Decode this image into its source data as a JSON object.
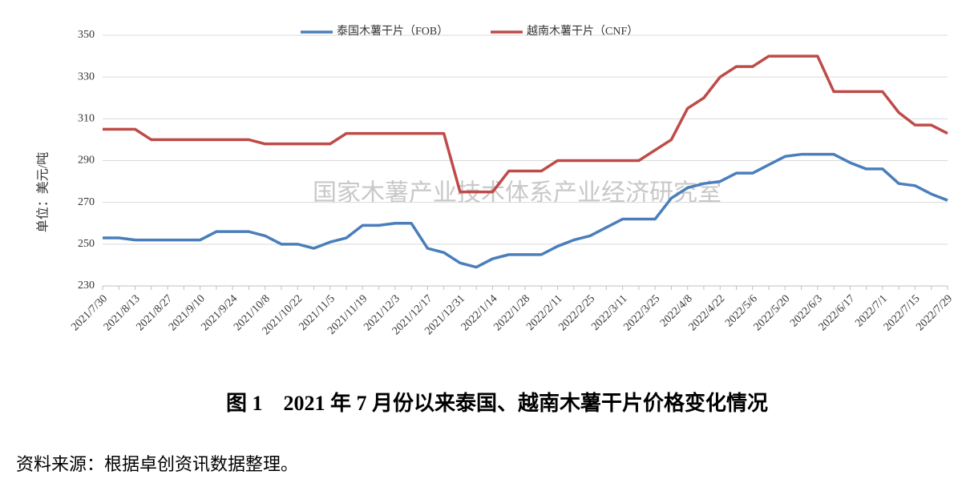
{
  "chart_data": {
    "type": "line",
    "y_label": "单位：美元/吨",
    "watermark": "国家木薯产业技术体系产业经济研究室",
    "caption": "图 1　2021 年 7 月份以来泰国、越南木薯干片价格变化情况",
    "source": "资料来源：根据卓创资讯数据整理。",
    "categories": [
      "2021/7/30",
      null,
      "2021/8/13",
      null,
      "2021/8/27",
      null,
      "2021/9/10",
      null,
      "2021/9/24",
      null,
      "2021/10/8",
      null,
      "2021/10/22",
      null,
      "2021/11/5",
      null,
      "2021/11/19",
      null,
      "2021/12/3",
      null,
      "2021/12/17",
      null,
      "2021/12/31",
      null,
      "2022/1/14",
      null,
      "2022/1/28",
      null,
      "2022/2/11",
      null,
      "2022/2/25",
      null,
      "2022/3/11",
      null,
      "2022/3/25",
      null,
      "2022/4/8",
      null,
      "2022/4/22",
      null,
      "2022/5/6",
      null,
      "2022/5/20",
      null,
      "2022/6/3",
      null,
      "2022/6/17",
      null,
      "2022/7/1",
      null,
      "2022/7/15",
      null,
      "2022/7/29"
    ],
    "series": [
      {
        "name": "泰国木薯干片（FOB）",
        "color": "#4a7ebb",
        "values": [
          253,
          253,
          252,
          252,
          252,
          252,
          252,
          256,
          256,
          256,
          254,
          250,
          250,
          248,
          251,
          253,
          259,
          259,
          260,
          260,
          248,
          246,
          241,
          239,
          243,
          245,
          245,
          245,
          249,
          252,
          254,
          258,
          262,
          262,
          262,
          272,
          277,
          279,
          280,
          284,
          284,
          288,
          292,
          293,
          293,
          293,
          289,
          286,
          286,
          279,
          278,
          274,
          271
        ]
      },
      {
        "name": "越南木薯干片（CNF）",
        "color": "#be4b48",
        "values": [
          305,
          305,
          305,
          300,
          300,
          300,
          300,
          300,
          300,
          300,
          298,
          298,
          298,
          298,
          298,
          303,
          303,
          303,
          303,
          303,
          303,
          303,
          275,
          275,
          275,
          285,
          285,
          285,
          290,
          290,
          290,
          290,
          290,
          290,
          295,
          300,
          315,
          320,
          330,
          335,
          335,
          340,
          340,
          340,
          340,
          323,
          323,
          323,
          323,
          313,
          307,
          307,
          303
        ]
      }
    ],
    "ylim": [
      230,
      350
    ],
    "yticks": [
      230,
      250,
      270,
      290,
      310,
      330,
      350
    ],
    "grid": true
  }
}
